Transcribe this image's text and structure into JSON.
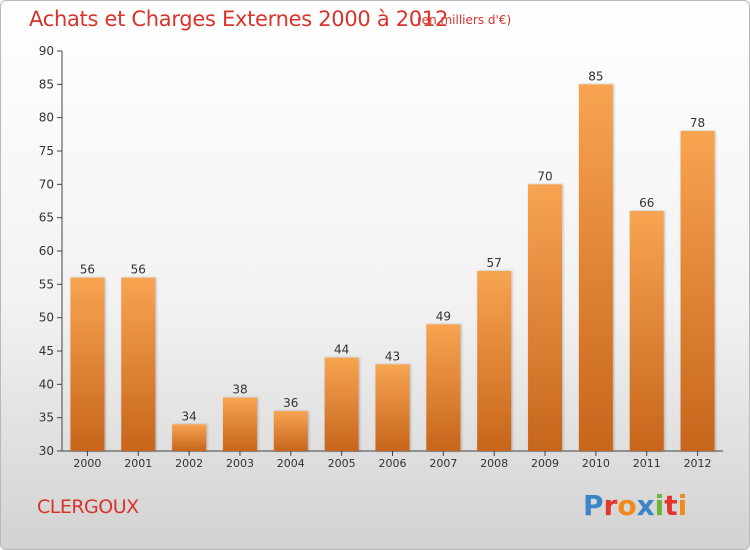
{
  "title": "Achats et Charges Externes 2000 à 2012",
  "subtitle": "(en milliers d'€)",
  "place": "CLERGOUX",
  "logo": {
    "text": "Proxiti",
    "colors": [
      "#3a86c8",
      "#e2352d",
      "#f08a1f",
      "#3a86c8",
      "#6bb53a",
      "#e2352d",
      "#f08a1f"
    ]
  },
  "colors": {
    "bar_top": "#f7a452",
    "bar_bottom": "#c7651b",
    "text_red": "#d8342c"
  },
  "chart_data": {
    "type": "bar",
    "categories": [
      "2000",
      "2001",
      "2002",
      "2003",
      "2004",
      "2005",
      "2006",
      "2007",
      "2008",
      "2009",
      "2010",
      "2011",
      "2012"
    ],
    "values": [
      56,
      56,
      34,
      38,
      36,
      44,
      43,
      49,
      57,
      70,
      85,
      66,
      78
    ],
    "value_labels": [
      "56",
      "56",
      "34",
      "38",
      "36",
      "44",
      "43",
      "49",
      "57",
      "70",
      "85",
      "66",
      "78"
    ],
    "yticks": [
      30,
      35,
      40,
      45,
      50,
      55,
      60,
      65,
      70,
      75,
      80,
      85,
      90
    ],
    "ylim": [
      30,
      90
    ],
    "grid": false,
    "legend": "none"
  }
}
